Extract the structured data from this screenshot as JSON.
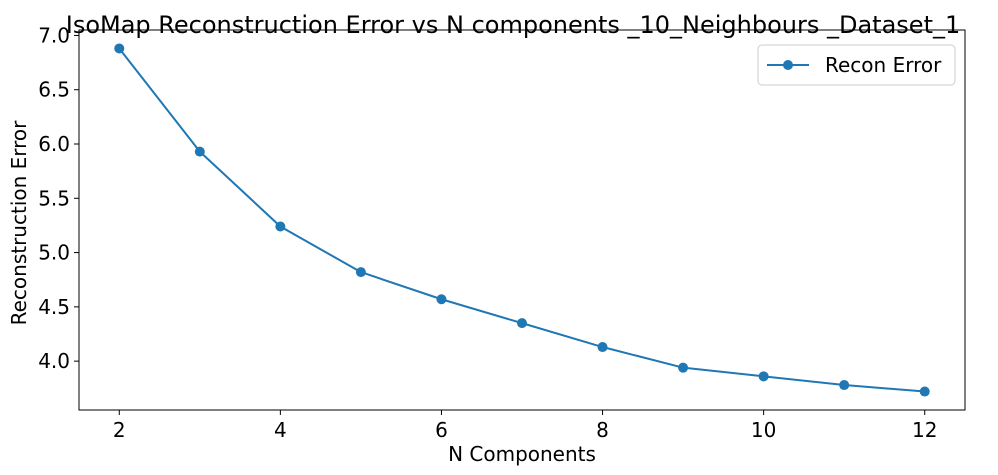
{
  "chart_data": {
    "type": "line",
    "title": "IsoMap Reconstruction Error vs N components _10_Neighbours _Dataset_1",
    "xlabel": "N Components",
    "ylabel": "Reconstruction Error",
    "xlim": [
      1.5,
      12.5
    ],
    "ylim": [
      3.55,
      7.05
    ],
    "xticks": [
      2,
      4,
      6,
      8,
      10,
      12
    ],
    "xtick_labels": [
      "2",
      "4",
      "6",
      "8",
      "10",
      "12"
    ],
    "yticks": [
      4.0,
      4.5,
      5.0,
      5.5,
      6.0,
      6.5,
      7.0
    ],
    "ytick_labels": [
      "4.0",
      "4.5",
      "5.0",
      "5.5",
      "6.0",
      "6.5",
      "7.0"
    ],
    "grid": false,
    "legend_position": "top-right",
    "series": [
      {
        "name": "Recon Error",
        "color": "#1f77b4",
        "marker": "circle",
        "x": [
          2,
          3,
          4,
          5,
          6,
          7,
          8,
          9,
          10,
          11,
          12
        ],
        "y": [
          6.88,
          5.93,
          5.24,
          4.82,
          4.57,
          4.35,
          4.13,
          3.94,
          3.86,
          3.78,
          3.72
        ]
      }
    ]
  }
}
